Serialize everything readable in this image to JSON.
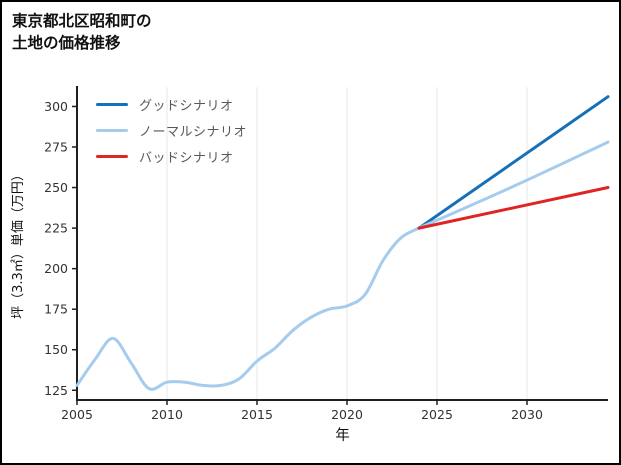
{
  "header": {
    "title_line1": "東京都北区昭和町の",
    "title_line2": "土地の価格推移"
  },
  "chart_data": {
    "type": "line",
    "title": "東京都北区昭和町の土地の価格推移",
    "xlabel": "年",
    "ylabel": "坪（3.3㎡）単価（万円）",
    "xlim": [
      2005,
      2034.5
    ],
    "ylim": [
      119,
      312
    ],
    "xticks": [
      2005,
      2010,
      2015,
      2020,
      2025,
      2030
    ],
    "yticks": [
      125,
      150,
      175,
      200,
      225,
      250,
      275,
      300
    ],
    "grid": "vertical-light",
    "style": {
      "grid_color": "#e7e7e7",
      "axis_color": "#1f1f1f",
      "tick_label_color": "#333333",
      "axis_label_color": "#111111"
    },
    "legend": {
      "position": "top-left",
      "entries": [
        {
          "label": "グッドシナリオ",
          "color": "#1670b8"
        },
        {
          "label": "ノーマルシナリオ",
          "color": "#a5cbed"
        },
        {
          "label": "バッドシナリオ",
          "color": "#e02424"
        }
      ]
    },
    "series": [
      {
        "name": "history",
        "color": "#a5cbed",
        "width": 3,
        "smooth": true,
        "x": [
          2005,
          2006,
          2007,
          2008,
          2009,
          2010,
          2011,
          2012,
          2013,
          2014,
          2015,
          2016,
          2017,
          2018,
          2019,
          2020,
          2021,
          2022,
          2023,
          2024
        ],
        "values": [
          128,
          144,
          157,
          142,
          126,
          130,
          130,
          128,
          128,
          132,
          143,
          151,
          162,
          170,
          175,
          177,
          184,
          205,
          219,
          225
        ]
      },
      {
        "name": "グッドシナリオ",
        "color": "#1670b8",
        "width": 3,
        "smooth": false,
        "x": [
          2024,
          2034.5
        ],
        "values": [
          225,
          306
        ]
      },
      {
        "name": "ノーマルシナリオ",
        "color": "#a5cbed",
        "width": 3,
        "smooth": true,
        "x": [
          2024,
          2029.3,
          2034.5
        ],
        "values": [
          225,
          251,
          278
        ]
      },
      {
        "name": "バッドシナリオ",
        "color": "#e02424",
        "width": 3,
        "smooth": false,
        "x": [
          2024,
          2034.5
        ],
        "values": [
          225,
          250
        ]
      }
    ]
  }
}
